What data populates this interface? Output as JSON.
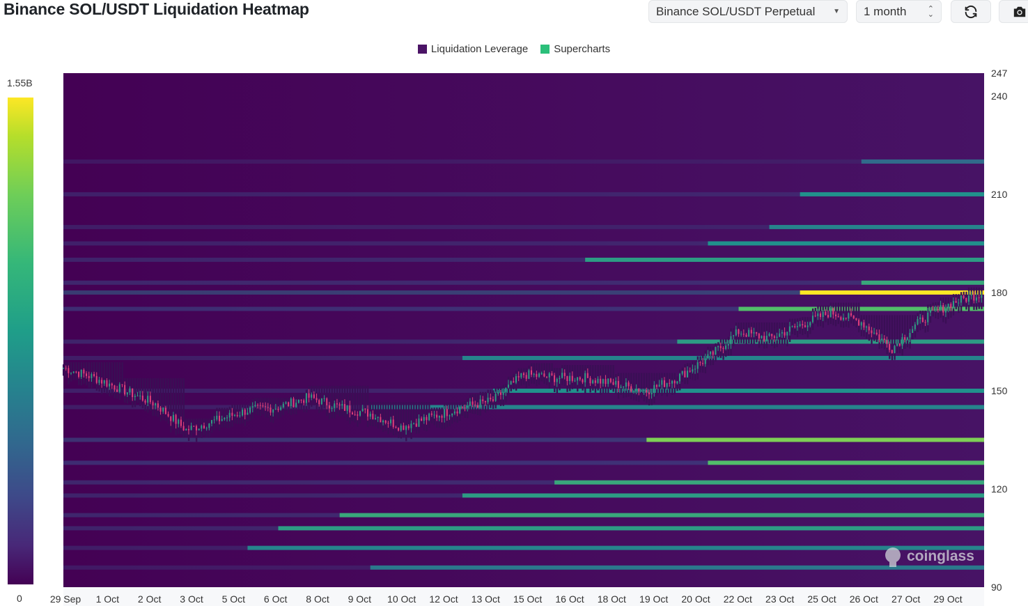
{
  "header": {
    "title": "Binance SOL/USDT Liquidation Heatmap",
    "pair_select": "Binance SOL/USDT Perpetual",
    "period_select": "1 month"
  },
  "icons": {
    "refresh": "refresh-icon",
    "camera": "camera-icon",
    "watermark": "coinglass-logo"
  },
  "watermark": "coinglass",
  "colors": {
    "low": "#440154",
    "mid": "#21918c",
    "high": "#5ec962",
    "max": "#fde725",
    "legend_leverage": "#4b1466",
    "legend_supercharts": "#2bbf7a",
    "candle_up": "#2e9e83",
    "candle_down": "#e0407a"
  },
  "color_scale": {
    "max_label": "1.55B",
    "min_label": "0"
  },
  "chart_data": {
    "type": "heatmap",
    "title": "Binance SOL/USDT Liquidation Heatmap",
    "legend": [
      "Liquidation Leverage",
      "Supercharts"
    ],
    "legend_position": "top-center",
    "x_ticks": [
      "29 Sep",
      "1 Oct",
      "2 Oct",
      "3 Oct",
      "5 Oct",
      "6 Oct",
      "8 Oct",
      "9 Oct",
      "10 Oct",
      "12 Oct",
      "13 Oct",
      "15 Oct",
      "16 Oct",
      "18 Oct",
      "19 Oct",
      "20 Oct",
      "22 Oct",
      "23 Oct",
      "25 Oct",
      "26 Oct",
      "27 Oct",
      "29 Oct"
    ],
    "y_ticks": [
      247,
      240,
      210,
      180,
      150,
      120,
      90
    ],
    "ylim": [
      90,
      247
    ],
    "color_range": [
      0,
      1550000000
    ],
    "price_series": [
      {
        "date": "29 Sep",
        "price": 157
      },
      {
        "date": "30 Sep",
        "price": 154
      },
      {
        "date": "1 Oct",
        "price": 150
      },
      {
        "date": "2 Oct",
        "price": 146
      },
      {
        "date": "3 Oct",
        "price": 138
      },
      {
        "date": "4 Oct",
        "price": 141
      },
      {
        "date": "5 Oct",
        "price": 144
      },
      {
        "date": "6 Oct",
        "price": 145
      },
      {
        "date": "7 Oct",
        "price": 148
      },
      {
        "date": "8 Oct",
        "price": 145
      },
      {
        "date": "9 Oct",
        "price": 143
      },
      {
        "date": "10 Oct",
        "price": 139
      },
      {
        "date": "11 Oct",
        "price": 142
      },
      {
        "date": "12 Oct",
        "price": 145
      },
      {
        "date": "13 Oct",
        "price": 147
      },
      {
        "date": "14 Oct",
        "price": 155
      },
      {
        "date": "15 Oct",
        "price": 154
      },
      {
        "date": "16 Oct",
        "price": 154
      },
      {
        "date": "17 Oct",
        "price": 152
      },
      {
        "date": "18 Oct",
        "price": 150
      },
      {
        "date": "19 Oct",
        "price": 154
      },
      {
        "date": "20 Oct",
        "price": 160
      },
      {
        "date": "21 Oct",
        "price": 168
      },
      {
        "date": "22 Oct",
        "price": 166
      },
      {
        "date": "23 Oct",
        "price": 170
      },
      {
        "date": "24 Oct",
        "price": 174
      },
      {
        "date": "25 Oct",
        "price": 171
      },
      {
        "date": "26 Oct",
        "price": 163
      },
      {
        "date": "27 Oct",
        "price": 172
      },
      {
        "date": "28 Oct",
        "price": 177
      },
      {
        "date": "29 Oct",
        "price": 180
      }
    ],
    "liquidation_bands": [
      {
        "price": 180,
        "intensity": 1.0,
        "from": "23 Oct"
      },
      {
        "price": 183,
        "intensity": 0.6,
        "from": "25 Oct"
      },
      {
        "price": 175,
        "intensity": 0.7,
        "from": "21 Oct"
      },
      {
        "price": 190,
        "intensity": 0.55,
        "from": "16 Oct"
      },
      {
        "price": 195,
        "intensity": 0.5,
        "from": "20 Oct"
      },
      {
        "price": 200,
        "intensity": 0.45,
        "from": "22 Oct"
      },
      {
        "price": 210,
        "intensity": 0.5,
        "from": "23 Oct"
      },
      {
        "price": 220,
        "intensity": 0.35,
        "from": "25 Oct"
      },
      {
        "price": 165,
        "intensity": 0.55,
        "from": "19 Oct"
      },
      {
        "price": 160,
        "intensity": 0.45,
        "from": "12 Oct"
      },
      {
        "price": 150,
        "intensity": 0.5,
        "from": "13 Oct"
      },
      {
        "price": 145,
        "intensity": 0.45,
        "from": "9 Oct"
      },
      {
        "price": 135,
        "intensity": 0.8,
        "from": "18 Oct"
      },
      {
        "price": 128,
        "intensity": 0.7,
        "from": "20 Oct"
      },
      {
        "price": 122,
        "intensity": 0.6,
        "from": "15 Oct"
      },
      {
        "price": 118,
        "intensity": 0.55,
        "from": "12 Oct"
      },
      {
        "price": 112,
        "intensity": 0.6,
        "from": "8 Oct"
      },
      {
        "price": 108,
        "intensity": 0.55,
        "from": "6 Oct"
      },
      {
        "price": 102,
        "intensity": 0.45,
        "from": "5 Oct"
      },
      {
        "price": 96,
        "intensity": 0.4,
        "from": "9 Oct"
      }
    ]
  }
}
